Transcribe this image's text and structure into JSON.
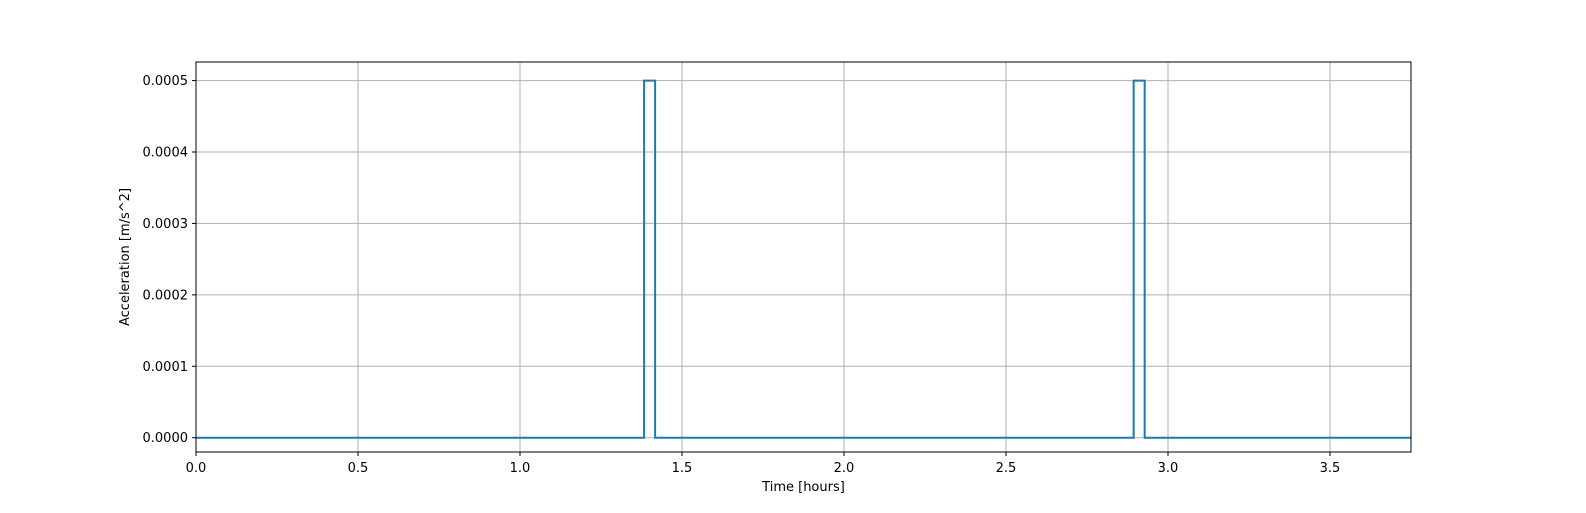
{
  "chart_data": {
    "type": "line",
    "title": "",
    "xlabel": "Time [hours]",
    "ylabel": "Acceleration [m/s^2]",
    "xlim": [
      0.0,
      3.75
    ],
    "ylim": [
      -2e-05,
      0.000526
    ],
    "grid": true,
    "x_ticks": [
      "0.0",
      "0.5",
      "1.0",
      "1.5",
      "2.0",
      "2.5",
      "3.0",
      "3.5"
    ],
    "x_tick_values": [
      0.0,
      0.5,
      1.0,
      1.5,
      2.0,
      2.5,
      3.0,
      3.5
    ],
    "y_ticks": [
      "0.0000",
      "0.0001",
      "0.0002",
      "0.0003",
      "0.0004",
      "0.0005"
    ],
    "y_tick_values": [
      0.0,
      0.0001,
      0.0002,
      0.0003,
      0.0004,
      0.0005
    ],
    "series": [
      {
        "color": "#1f77b4",
        "x": [
          0.0,
          1.383,
          1.383,
          1.417,
          1.417,
          2.894,
          2.894,
          2.928,
          2.928,
          3.75
        ],
        "y": [
          0.0,
          0.0,
          0.0005,
          0.0005,
          0.0,
          0.0,
          0.0005,
          0.0005,
          0.0,
          0.0
        ]
      }
    ]
  }
}
